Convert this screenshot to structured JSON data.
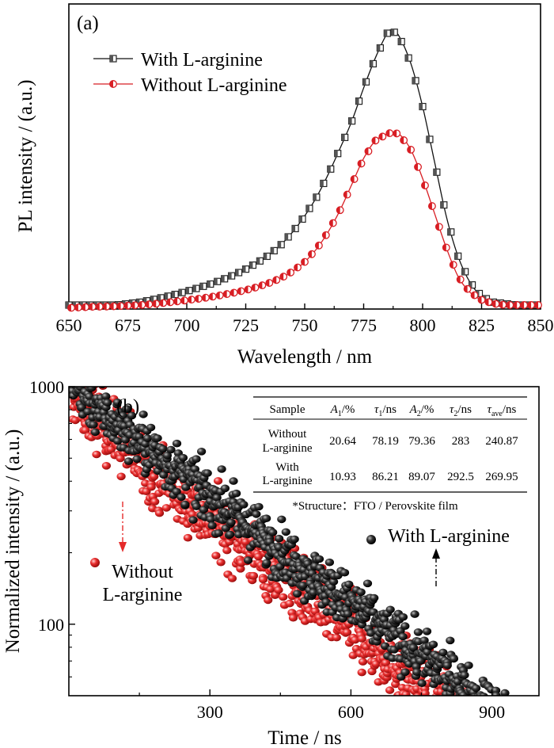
{
  "chart_data": [
    {
      "panel": "(a)",
      "type": "line",
      "xlabel": "Wavelength / nm",
      "ylabel": "PL intensity / (a.u.)",
      "xlim": [
        650,
        850
      ],
      "ylim": [
        0,
        1.0
      ],
      "x_ticks": [
        650,
        675,
        700,
        725,
        750,
        775,
        800,
        825,
        850
      ],
      "legend_position": "top-left",
      "colors": {
        "with": "#111111",
        "without": "#d81e24",
        "with_marker": "#555555"
      },
      "x": [
        650,
        655,
        660,
        665,
        670,
        675,
        680,
        685,
        690,
        695,
        700,
        705,
        710,
        715,
        720,
        725,
        730,
        735,
        740,
        745,
        750,
        755,
        760,
        765,
        770,
        775,
        780,
        785,
        787,
        790,
        795,
        800,
        805,
        810,
        815,
        820,
        825,
        830,
        835,
        840,
        845,
        850
      ],
      "series": [
        {
          "name": "With L-arginine",
          "marker": "square",
          "values": [
            0.0,
            0.0,
            0.0,
            0.0,
            0.0,
            0.005,
            0.01,
            0.018,
            0.027,
            0.037,
            0.048,
            0.06,
            0.073,
            0.088,
            0.105,
            0.125,
            0.148,
            0.175,
            0.21,
            0.255,
            0.31,
            0.375,
            0.455,
            0.545,
            0.64,
            0.755,
            0.86,
            0.945,
            0.955,
            0.935,
            0.84,
            0.69,
            0.5,
            0.31,
            0.17,
            0.08,
            0.03,
            0.01,
            0.005,
            0.0,
            0.0,
            0.0
          ]
        },
        {
          "name": "Without L-arginine",
          "marker": "half-circle",
          "values": [
            -0.01,
            -0.008,
            -0.006,
            -0.005,
            -0.004,
            -0.002,
            0.0,
            0.003,
            0.007,
            0.012,
            0.017,
            0.022,
            0.028,
            0.035,
            0.043,
            0.052,
            0.063,
            0.077,
            0.094,
            0.118,
            0.15,
            0.195,
            0.255,
            0.33,
            0.42,
            0.51,
            0.572,
            0.595,
            0.6,
            0.595,
            0.54,
            0.44,
            0.32,
            0.2,
            0.1,
            0.045,
            0.018,
            0.005,
            0.0,
            0.0,
            0.0,
            0.0
          ]
        }
      ]
    },
    {
      "panel": "(b)",
      "type": "scatter",
      "xlabel": "Time / ns",
      "ylabel": "Normalized intensity / (a.u.)",
      "xlim": [
        0,
        1000
      ],
      "ylim": [
        50,
        1000
      ],
      "y_scale": "log",
      "x_ticks": [
        300,
        600,
        900
      ],
      "y_ticks": [
        100,
        1000
      ],
      "colors": {
        "with": "#1a1a1a",
        "without": "#e52a2a"
      },
      "series": [
        {
          "name": "With L-arginine",
          "model": {
            "A1": 10.93,
            "tau1": 86.21,
            "A2": 89.07,
            "tau2": 292.5
          },
          "noise": 0.13
        },
        {
          "name": "Without L-arginine",
          "model": {
            "A1": 20.64,
            "tau1": 78.19,
            "A2": 79.36,
            "tau2": 283
          },
          "noise": 0.16
        }
      ],
      "annotations": {
        "with": "With L-arginine",
        "without_line1": "Without",
        "without_line2": "L-arginine"
      },
      "table": {
        "headers": [
          "Sample",
          "A1/%",
          "τ1/ns",
          "A2/%",
          "τ2/ns",
          "τave/ns"
        ],
        "rows": [
          {
            "sample_line1": "Without",
            "sample_line2": "L-arginine",
            "values": [
              "20.64",
              "78.19",
              "79.36",
              "283",
              "240.87"
            ]
          },
          {
            "sample_line1": "With",
            "sample_line2": "L-arginine",
            "values": [
              "10.93",
              "86.21",
              "89.07",
              "292.5",
              "269.95"
            ]
          }
        ],
        "footnote": "*Structure：FTO / Perovskite film"
      }
    }
  ]
}
